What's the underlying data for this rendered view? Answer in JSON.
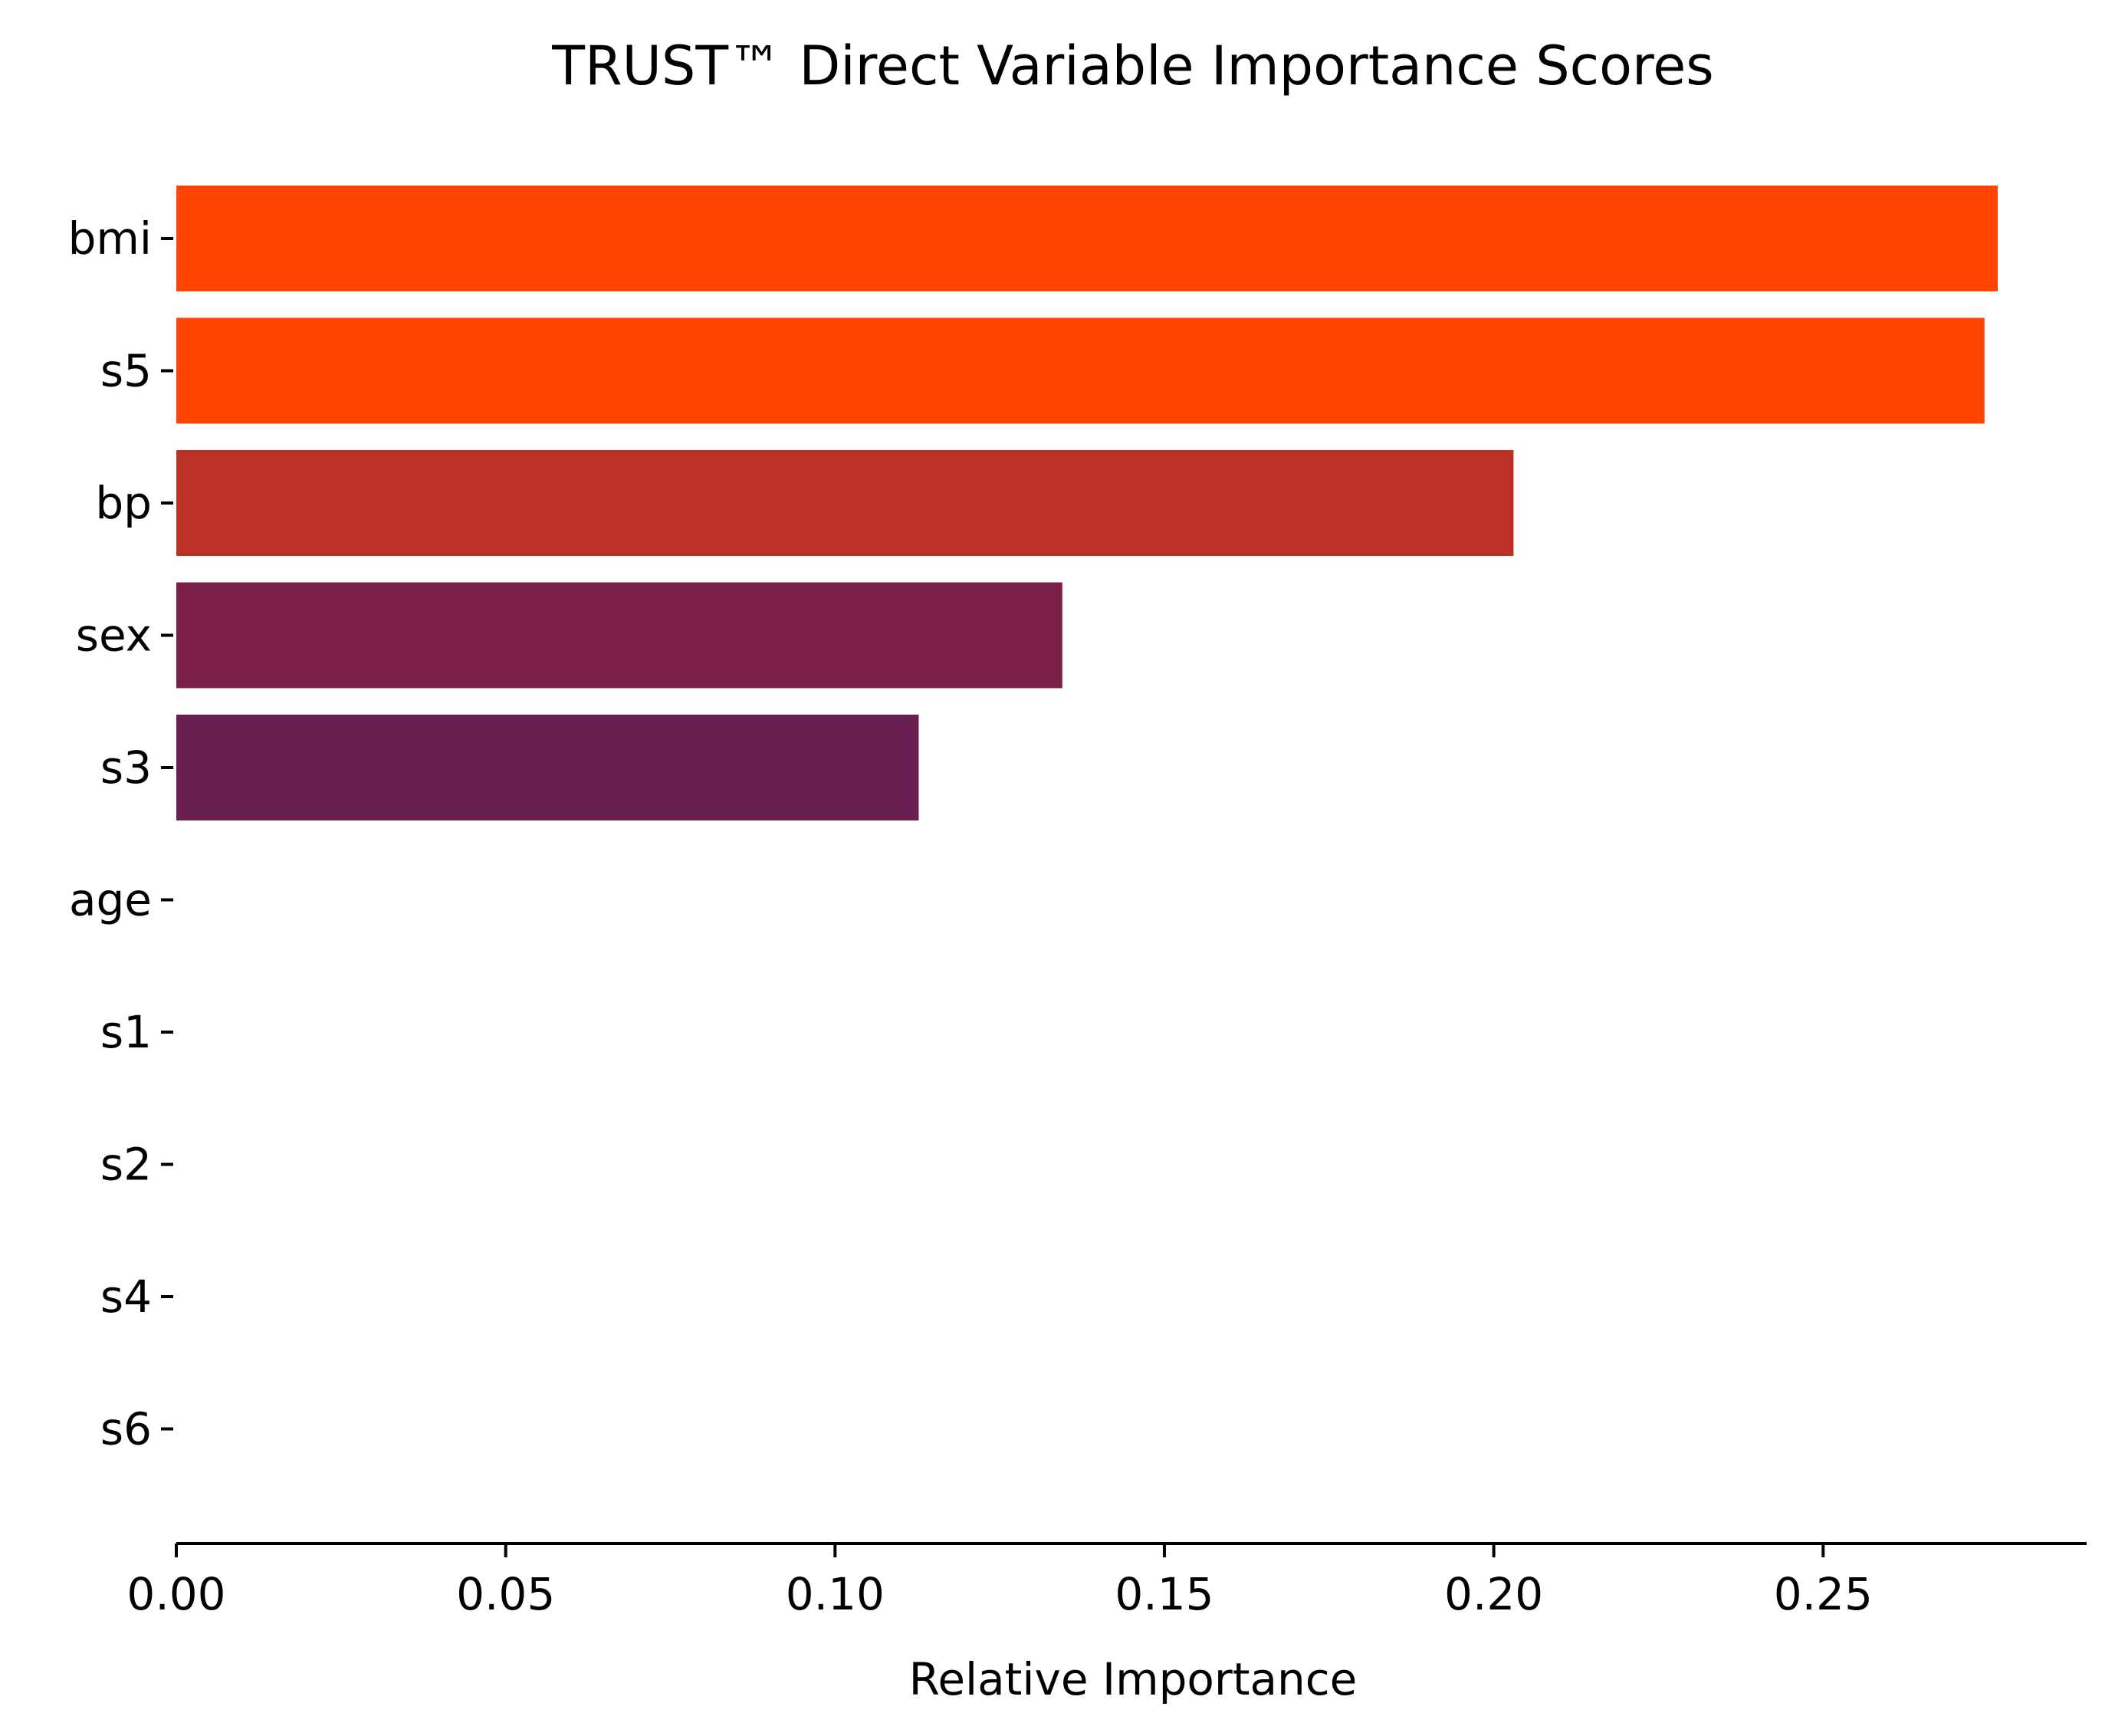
{
  "chart_data": {
    "type": "bar",
    "orientation": "horizontal",
    "title": "TRUST™ Direct Variable Importance Scores",
    "xlabel": "Relative Importance",
    "ylabel": "",
    "categories": [
      "bmi",
      "s5",
      "bp",
      "sex",
      "s3",
      "age",
      "s1",
      "s2",
      "s4",
      "s6"
    ],
    "values": [
      0.2765,
      0.2745,
      0.203,
      0.1345,
      0.1127,
      0.0,
      0.0,
      0.0,
      0.0,
      0.0
    ],
    "colors": [
      "#ff4500",
      "#ff4500",
      "#bb3125",
      "#7b2046",
      "#691e50",
      "#691e50",
      "#691e50",
      "#691e50",
      "#691e50",
      "#691e50"
    ],
    "xlim": [
      0.0,
      0.29
    ],
    "xticks": [
      0.0,
      0.05,
      0.1,
      0.15,
      0.2,
      0.25
    ],
    "xtick_labels": [
      "0.00",
      "0.05",
      "0.10",
      "0.15",
      "0.20",
      "0.25"
    ],
    "grid": false,
    "legend": "none"
  }
}
